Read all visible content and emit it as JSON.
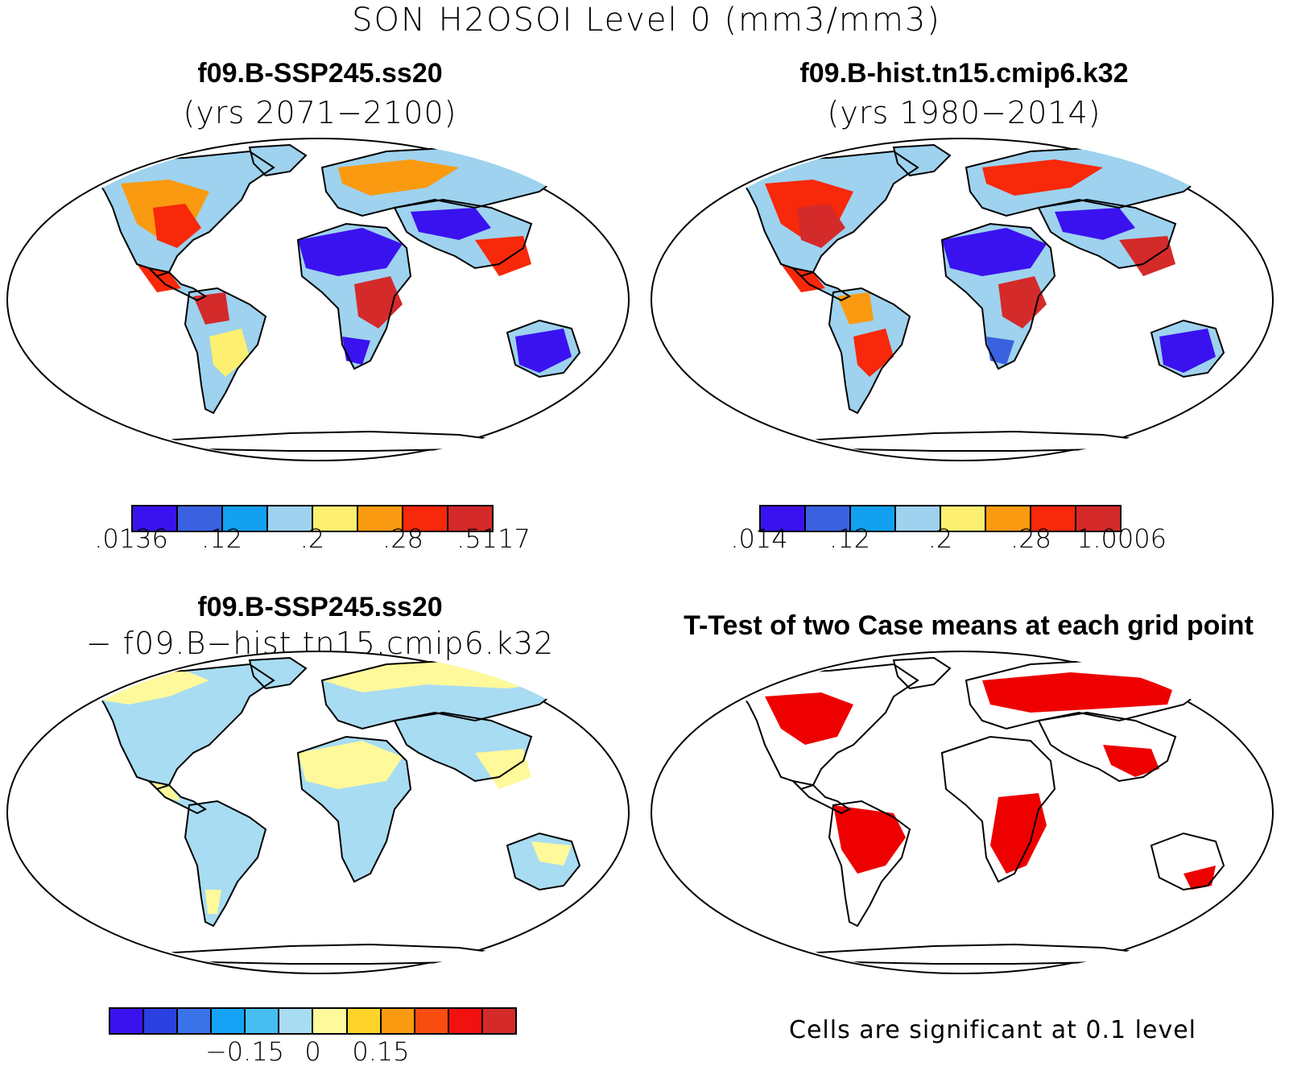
{
  "title": "SON H2OSOI Level 0 (mm3/mm3)",
  "panels": {
    "top_left": {
      "title": "f09.B-SSP245.ss20",
      "subtitle": "(yrs 2071−2100)"
    },
    "top_right": {
      "title": "f09.B-hist.tn15.cmip6.k32",
      "subtitle": "(yrs 1980−2014)"
    },
    "bottom_left": {
      "title": "f09.B-SSP245.ss20",
      "subtitle": "− f09.B−hist.tn15.cmip6.k32"
    },
    "bottom_right": {
      "title": "T-Test of two Case means at each grid point"
    }
  },
  "colorbars": {
    "top_left": {
      "colors": [
        "#3a12f0",
        "#3a62e0",
        "#12a0f0",
        "#9ed2ee",
        "#fdf070",
        "#fa9a10",
        "#f8280a",
        "#d42a2a"
      ],
      "labels": [
        ".0136",
        ".12",
        ".2",
        ".28",
        ".5117"
      ]
    },
    "top_right": {
      "colors": [
        "#3a12f0",
        "#3a62e0",
        "#12a0f0",
        "#9ed2ee",
        "#fdf070",
        "#fa9a10",
        "#f8280a",
        "#d42a2a"
      ],
      "labels": [
        ".014",
        ".12",
        ".2",
        ".28",
        "1.0006"
      ]
    },
    "bottom_left": {
      "colors": [
        "#3a12f0",
        "#2a40e0",
        "#3a72e8",
        "#16a2f4",
        "#46bef2",
        "#a8dcf2",
        "#fef99a",
        "#fed42a",
        "#fa9a10",
        "#f84c10",
        "#f21010",
        "#d42a2a"
      ],
      "labels": [
        "−0.15",
        "0",
        "0.15"
      ]
    }
  },
  "footnote": "Cells are significant at 0.1 level",
  "colors": {
    "significant": "#ee0000",
    "land_outline": "#000000",
    "ocean": "#ffffff"
  }
}
